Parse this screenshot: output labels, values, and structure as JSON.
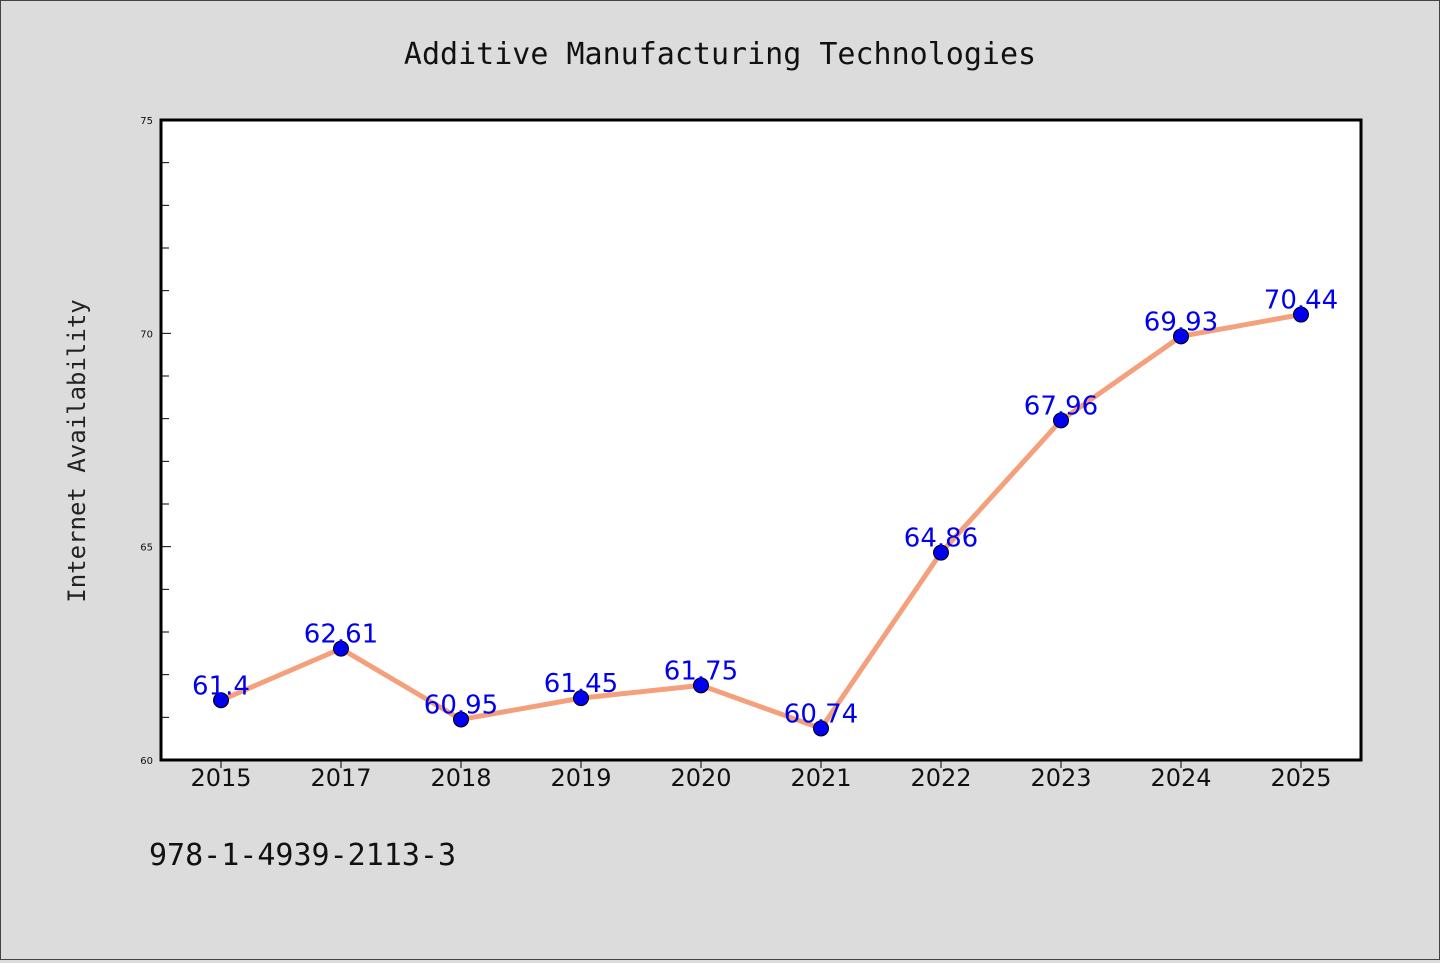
{
  "chart_data": {
    "type": "line",
    "title": "Additive Manufacturing Technologies",
    "xlabel": "",
    "ylabel": "Internet Availability",
    "categories": [
      "2015",
      "2017",
      "2018",
      "2019",
      "2020",
      "2021",
      "2022",
      "2023",
      "2024",
      "2025"
    ],
    "series": [
      {
        "values": [
          61.4,
          62.61,
          60.95,
          61.45,
          61.75,
          60.74,
          64.86,
          67.96,
          69.93,
          70.44
        ],
        "labels": [
          "61.4",
          "62.61",
          "60.95",
          "61.45",
          "61.75",
          "60.74",
          "64.86",
          "67.96",
          "69.93",
          "70.44"
        ],
        "line_color": "#f4a07c",
        "marker_color": "#0000ee"
      }
    ],
    "ylim": [
      60,
      75
    ],
    "yticks": [
      "60",
      "65",
      "70",
      "75"
    ],
    "grid": false,
    "legend": "none"
  },
  "footnote": "978-1-4939-2113-3",
  "colors": {
    "background": "#dcdcdc",
    "plot_background": "#ffffff"
  }
}
